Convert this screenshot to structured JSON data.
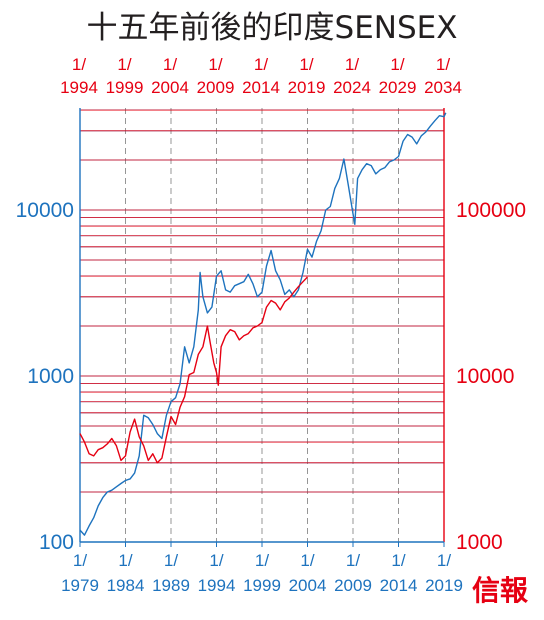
{
  "title": "十五年前後的印度SENSEX",
  "logo": "信報",
  "chart_data": {
    "type": "line",
    "title": "十五年前後的印度SENSEX",
    "top_axis": {
      "color": "#e60012",
      "labels": [
        {
          "m": "1/",
          "y": "1994"
        },
        {
          "m": "1/",
          "y": "1999"
        },
        {
          "m": "1/",
          "y": "2004"
        },
        {
          "m": "1/",
          "y": "2009"
        },
        {
          "m": "1/",
          "y": "2014"
        },
        {
          "m": "1/",
          "y": "2019"
        },
        {
          "m": "1/",
          "y": "2024"
        },
        {
          "m": "1/",
          "y": "2029"
        },
        {
          "m": "1/",
          "y": "2034"
        }
      ],
      "range": [
        1994,
        2034
      ]
    },
    "bottom_axis": {
      "color": "#1e73be",
      "labels": [
        {
          "m": "1/",
          "y": "1979"
        },
        {
          "m": "1/",
          "y": "1984"
        },
        {
          "m": "1/",
          "y": "1989"
        },
        {
          "m": "1/",
          "y": "1994"
        },
        {
          "m": "1/",
          "y": "1999"
        },
        {
          "m": "1/",
          "y": "2004"
        },
        {
          "m": "1/",
          "y": "2009"
        },
        {
          "m": "1/",
          "y": "2014"
        },
        {
          "m": "1/",
          "y": "2019"
        }
      ],
      "range": [
        1979,
        2019
      ]
    },
    "left_axis": {
      "scale": "log",
      "color": "#1e73be",
      "labels": [
        "100",
        "1000",
        "10000"
      ],
      "range": [
        100,
        40000
      ]
    },
    "right_axis": {
      "scale": "log",
      "color": "#e60012",
      "labels": [
        "1000",
        "10000",
        "100000"
      ],
      "range": [
        1000,
        400000
      ]
    },
    "grid": true,
    "series": [
      {
        "color": "#1e73be",
        "axis": "bottom-left",
        "points": [
          [
            1979.0,
            118
          ],
          [
            1979.5,
            110
          ],
          [
            1980.0,
            125
          ],
          [
            1980.5,
            140
          ],
          [
            1981.0,
            165
          ],
          [
            1981.5,
            185
          ],
          [
            1982.0,
            200
          ],
          [
            1982.5,
            205
          ],
          [
            1983.0,
            215
          ],
          [
            1983.5,
            225
          ],
          [
            1984.0,
            235
          ],
          [
            1984.5,
            240
          ],
          [
            1985.0,
            260
          ],
          [
            1985.5,
            330
          ],
          [
            1986.0,
            580
          ],
          [
            1986.5,
            560
          ],
          [
            1987.0,
            510
          ],
          [
            1987.5,
            450
          ],
          [
            1988.0,
            420
          ],
          [
            1988.5,
            580
          ],
          [
            1989.0,
            700
          ],
          [
            1989.5,
            740
          ],
          [
            1990.0,
            900
          ],
          [
            1990.5,
            1500
          ],
          [
            1991.0,
            1200
          ],
          [
            1991.5,
            1500
          ],
          [
            1992.0,
            2500
          ],
          [
            1992.2,
            4200
          ],
          [
            1992.5,
            3000
          ],
          [
            1993.0,
            2400
          ],
          [
            1993.5,
            2600
          ],
          [
            1994.0,
            4000
          ],
          [
            1994.5,
            4300
          ],
          [
            1995.0,
            3300
          ],
          [
            1995.5,
            3200
          ],
          [
            1996.0,
            3500
          ],
          [
            1996.5,
            3600
          ],
          [
            1997.0,
            3700
          ],
          [
            1997.5,
            4100
          ],
          [
            1998.0,
            3600
          ],
          [
            1998.5,
            3000
          ],
          [
            1999.0,
            3200
          ],
          [
            1999.5,
            4600
          ],
          [
            2000.0,
            5700
          ],
          [
            2000.5,
            4300
          ],
          [
            2001.0,
            3800
          ],
          [
            2001.5,
            3100
          ],
          [
            2002.0,
            3300
          ],
          [
            2002.5,
            3000
          ],
          [
            2003.0,
            3300
          ],
          [
            2003.5,
            4200
          ],
          [
            2004.0,
            5800
          ],
          [
            2004.5,
            5200
          ],
          [
            2005.0,
            6500
          ],
          [
            2005.5,
            7500
          ],
          [
            2006.0,
            10000
          ],
          [
            2006.5,
            10500
          ],
          [
            2007.0,
            13500
          ],
          [
            2007.5,
            15500
          ],
          [
            2008.0,
            20300
          ],
          [
            2008.5,
            14000
          ],
          [
            2009.0,
            9500
          ],
          [
            2009.2,
            8200
          ],
          [
            2009.5,
            15500
          ],
          [
            2010.0,
            17500
          ],
          [
            2010.5,
            19000
          ],
          [
            2011.0,
            18500
          ],
          [
            2011.5,
            16500
          ],
          [
            2012.0,
            17500
          ],
          [
            2012.5,
            18000
          ],
          [
            2013.0,
            19500
          ],
          [
            2013.5,
            20000
          ],
          [
            2014.0,
            21000
          ],
          [
            2014.5,
            26000
          ],
          [
            2015.0,
            28500
          ],
          [
            2015.5,
            27500
          ],
          [
            2016.0,
            25000
          ],
          [
            2016.5,
            28000
          ],
          [
            2017.0,
            29500
          ],
          [
            2017.5,
            32000
          ],
          [
            2018.0,
            34500
          ],
          [
            2018.5,
            37000
          ],
          [
            2019.0,
            36500
          ],
          [
            2019.2,
            38500
          ]
        ]
      },
      {
        "color": "#e60012",
        "axis": "top-right",
        "points": [
          [
            1994.0,
            4500
          ],
          [
            1994.5,
            4000
          ],
          [
            1995.0,
            3400
          ],
          [
            1995.5,
            3300
          ],
          [
            1996.0,
            3600
          ],
          [
            1996.5,
            3700
          ],
          [
            1997.0,
            3900
          ],
          [
            1997.5,
            4200
          ],
          [
            1998.0,
            3800
          ],
          [
            1998.5,
            3100
          ],
          [
            1999.0,
            3300
          ],
          [
            1999.5,
            4600
          ],
          [
            2000.0,
            5500
          ],
          [
            2000.5,
            4300
          ],
          [
            2001.0,
            3800
          ],
          [
            2001.5,
            3100
          ],
          [
            2002.0,
            3400
          ],
          [
            2002.5,
            3000
          ],
          [
            2003.0,
            3200
          ],
          [
            2003.5,
            4300
          ],
          [
            2004.0,
            5700
          ],
          [
            2004.5,
            5100
          ],
          [
            2005.0,
            6500
          ],
          [
            2005.5,
            7500
          ],
          [
            2006.0,
            10200
          ],
          [
            2006.5,
            10500
          ],
          [
            2007.0,
            13500
          ],
          [
            2007.5,
            15000
          ],
          [
            2008.0,
            20000
          ],
          [
            2008.3,
            16000
          ],
          [
            2008.7,
            12000
          ],
          [
            2009.0,
            10500
          ],
          [
            2009.2,
            8800
          ],
          [
            2009.5,
            15000
          ],
          [
            2010.0,
            17500
          ],
          [
            2010.5,
            19000
          ],
          [
            2011.0,
            18500
          ],
          [
            2011.5,
            16500
          ],
          [
            2012.0,
            17500
          ],
          [
            2012.5,
            18000
          ],
          [
            2013.0,
            19500
          ],
          [
            2013.5,
            20000
          ],
          [
            2014.0,
            21000
          ],
          [
            2014.5,
            26000
          ],
          [
            2015.0,
            28500
          ],
          [
            2015.5,
            27500
          ],
          [
            2016.0,
            25000
          ],
          [
            2016.5,
            28000
          ],
          [
            2017.0,
            29500
          ],
          [
            2017.5,
            32000
          ],
          [
            2018.0,
            34500
          ],
          [
            2018.5,
            37000
          ],
          [
            2019.0,
            39500
          ]
        ]
      }
    ]
  }
}
